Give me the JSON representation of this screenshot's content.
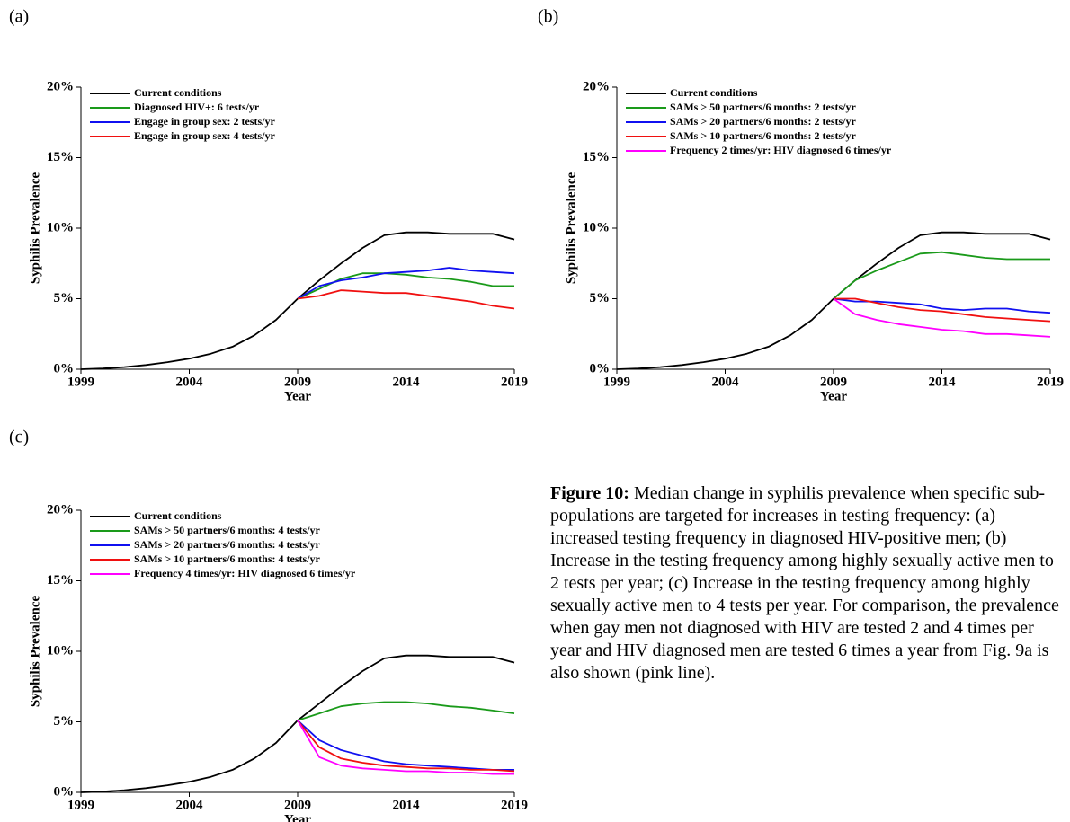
{
  "chart_data": [
    {
      "type": "line",
      "panel_label": "(a)",
      "ylabel": "Syphilis Prevalence",
      "xlabel": "Year",
      "x": [
        1999,
        2000,
        2001,
        2002,
        2003,
        2004,
        2005,
        2006,
        2007,
        2008,
        2009,
        2010,
        2011,
        2012,
        2013,
        2014,
        2015,
        2016,
        2017,
        2018,
        2019
      ],
      "xlim": [
        1999,
        2019
      ],
      "xticks": [
        1999,
        2004,
        2009,
        2014,
        2019
      ],
      "ylim": [
        0,
        20
      ],
      "yticks": [
        {
          "value": 0,
          "label": "0%"
        },
        {
          "value": 5,
          "label": "5%"
        },
        {
          "value": 10,
          "label": "10%"
        },
        {
          "value": 15,
          "label": "15%"
        },
        {
          "value": 20,
          "label": "20%"
        }
      ],
      "legend": "upper left",
      "series": [
        {
          "name": "Current conditions",
          "color": "#000000",
          "values": [
            0,
            0.05,
            0.15,
            0.3,
            0.5,
            0.75,
            1.1,
            1.6,
            2.4,
            3.5,
            5.0,
            6.3,
            7.5,
            8.6,
            9.5,
            9.7,
            9.7,
            9.6,
            9.6,
            9.6,
            9.2
          ]
        },
        {
          "name": "Diagnosed HIV+: 6 tests/yr",
          "color": "#1a9a1a",
          "values": [
            null,
            null,
            null,
            null,
            null,
            null,
            null,
            null,
            null,
            null,
            5.0,
            5.7,
            6.4,
            6.8,
            6.8,
            6.7,
            6.5,
            6.4,
            6.2,
            5.9,
            5.9
          ]
        },
        {
          "name": "Engage in group sex: 2 tests/yr",
          "color": "#1010f0",
          "values": [
            null,
            null,
            null,
            null,
            null,
            null,
            null,
            null,
            null,
            null,
            5.0,
            5.9,
            6.3,
            6.5,
            6.8,
            6.9,
            7.0,
            7.2,
            7.0,
            6.9,
            6.8
          ]
        },
        {
          "name": "Engage in group sex: 4 tests/yr",
          "color": "#f01010",
          "values": [
            null,
            null,
            null,
            null,
            null,
            null,
            null,
            null,
            null,
            null,
            5.0,
            5.2,
            5.6,
            5.5,
            5.4,
            5.4,
            5.2,
            5.0,
            4.8,
            4.5,
            4.3
          ]
        }
      ]
    },
    {
      "type": "line",
      "panel_label": "(b)",
      "ylabel": "Syphilis Prevalence",
      "xlabel": "Year",
      "x": [
        1999,
        2000,
        2001,
        2002,
        2003,
        2004,
        2005,
        2006,
        2007,
        2008,
        2009,
        2010,
        2011,
        2012,
        2013,
        2014,
        2015,
        2016,
        2017,
        2018,
        2019
      ],
      "xlim": [
        1999,
        2019
      ],
      "xticks": [
        1999,
        2004,
        2009,
        2014,
        2019
      ],
      "ylim": [
        0,
        20
      ],
      "yticks": [
        {
          "value": 0,
          "label": "0%"
        },
        {
          "value": 5,
          "label": "5%"
        },
        {
          "value": 10,
          "label": "10%"
        },
        {
          "value": 15,
          "label": "15%"
        },
        {
          "value": 20,
          "label": "20%"
        }
      ],
      "legend": "upper left",
      "series": [
        {
          "name": "Current conditions",
          "color": "#000000",
          "values": [
            0,
            0.05,
            0.15,
            0.3,
            0.5,
            0.75,
            1.1,
            1.6,
            2.4,
            3.5,
            5.0,
            6.3,
            7.5,
            8.6,
            9.5,
            9.7,
            9.7,
            9.6,
            9.6,
            9.6,
            9.2
          ]
        },
        {
          "name": "SAMs > 50 partners/6 months: 2 tests/yr",
          "color": "#1a9a1a",
          "values": [
            null,
            null,
            null,
            null,
            null,
            null,
            null,
            null,
            null,
            null,
            5.0,
            6.3,
            7.0,
            7.6,
            8.2,
            8.3,
            8.1,
            7.9,
            7.8,
            7.8,
            7.8
          ]
        },
        {
          "name": "SAMs > 20 partners/6 months: 2 tests/yr",
          "color": "#1010f0",
          "values": [
            null,
            null,
            null,
            null,
            null,
            null,
            null,
            null,
            null,
            null,
            5.0,
            4.8,
            4.8,
            4.7,
            4.6,
            4.3,
            4.2,
            4.3,
            4.3,
            4.1,
            4.0
          ]
        },
        {
          "name": "SAMs > 10 partners/6 months: 2 tests/yr",
          "color": "#f01010",
          "values": [
            null,
            null,
            null,
            null,
            null,
            null,
            null,
            null,
            null,
            null,
            5.0,
            5.0,
            4.7,
            4.4,
            4.2,
            4.1,
            3.9,
            3.7,
            3.6,
            3.5,
            3.4
          ]
        },
        {
          "name": "Frequency 2 times/yr: HIV diagnosed 6 times/yr",
          "color": "#ff00ff",
          "values": [
            null,
            null,
            null,
            null,
            null,
            null,
            null,
            null,
            null,
            null,
            5.0,
            3.9,
            3.5,
            3.2,
            3.0,
            2.8,
            2.7,
            2.5,
            2.5,
            2.4,
            2.3
          ]
        }
      ]
    },
    {
      "type": "line",
      "panel_label": "(c)",
      "ylabel": "Syphilis Prevalence",
      "xlabel": "Year",
      "x": [
        1999,
        2000,
        2001,
        2002,
        2003,
        2004,
        2005,
        2006,
        2007,
        2008,
        2009,
        2010,
        2011,
        2012,
        2013,
        2014,
        2015,
        2016,
        2017,
        2018,
        2019
      ],
      "xlim": [
        1999,
        2019
      ],
      "xticks": [
        1999,
        2004,
        2009,
        2014,
        2019
      ],
      "ylim": [
        0,
        20
      ],
      "yticks": [
        {
          "value": 0,
          "label": "0%"
        },
        {
          "value": 5,
          "label": "5%"
        },
        {
          "value": 10,
          "label": "10%"
        },
        {
          "value": 15,
          "label": "15%"
        },
        {
          "value": 20,
          "label": "20%"
        }
      ],
      "legend": "upper left",
      "series": [
        {
          "name": "Current conditions",
          "color": "#000000",
          "values": [
            0,
            0.05,
            0.15,
            0.3,
            0.5,
            0.75,
            1.1,
            1.6,
            2.4,
            3.5,
            5.1,
            6.3,
            7.5,
            8.6,
            9.5,
            9.7,
            9.7,
            9.6,
            9.6,
            9.6,
            9.2
          ]
        },
        {
          "name": "SAMs > 50 partners/6 months: 4 tests/yr",
          "color": "#1a9a1a",
          "values": [
            null,
            null,
            null,
            null,
            null,
            null,
            null,
            null,
            null,
            null,
            5.1,
            5.6,
            6.1,
            6.3,
            6.4,
            6.4,
            6.3,
            6.1,
            6.0,
            5.8,
            5.6
          ]
        },
        {
          "name": "SAMs > 20 partners/6 months: 4 tests/yr",
          "color": "#1010f0",
          "values": [
            null,
            null,
            null,
            null,
            null,
            null,
            null,
            null,
            null,
            null,
            5.1,
            3.7,
            3.0,
            2.6,
            2.2,
            2.0,
            1.9,
            1.8,
            1.7,
            1.6,
            1.6
          ]
        },
        {
          "name": "SAMs > 10 partners/6 months: 4 tests/yr",
          "color": "#f01010",
          "values": [
            null,
            null,
            null,
            null,
            null,
            null,
            null,
            null,
            null,
            null,
            5.1,
            3.2,
            2.4,
            2.1,
            1.9,
            1.8,
            1.7,
            1.7,
            1.6,
            1.6,
            1.5
          ]
        },
        {
          "name": "Frequency 4 times/yr: HIV diagnosed 6 times/yr",
          "color": "#ff00ff",
          "values": [
            null,
            null,
            null,
            null,
            null,
            null,
            null,
            null,
            null,
            null,
            5.1,
            2.5,
            1.9,
            1.7,
            1.6,
            1.5,
            1.5,
            1.4,
            1.4,
            1.3,
            1.3
          ]
        }
      ]
    }
  ],
  "caption": {
    "label": "Figure 10:",
    "text": "Median change in syphilis prevalence when specific sub-populations are targeted for increases in testing frequency: (a) increased testing frequency in diagnosed HIV-positive men; (b) Increase in the testing frequency among highly sexually active men to 2 tests per year; (c) Increase in the testing frequency among highly sexually active men to 4 tests per year. For comparison, the prevalence when gay men not diagnosed with HIV are tested 2 and 4 times per year and HIV diagnosed men are tested 6 times a year from Fig. 9a is also shown (pink line)."
  }
}
